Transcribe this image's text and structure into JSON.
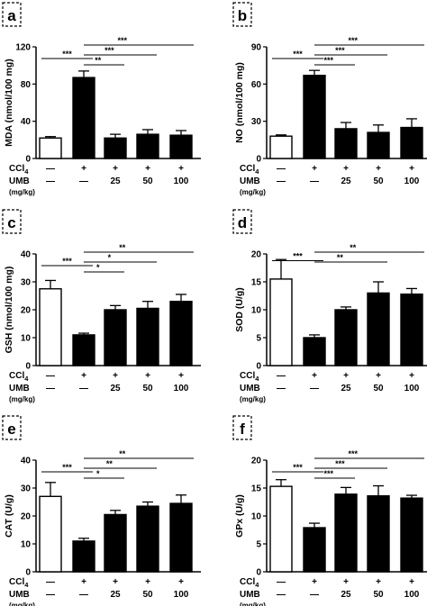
{
  "panels": [
    {
      "letter": "a",
      "chart_data": {
        "type": "bar",
        "categories": [
          "—",
          "CCl4",
          "CCl4+UMB 25",
          "CCl4+UMB 50",
          "CCl4+UMB 100"
        ],
        "values": [
          22,
          87,
          22,
          26,
          25
        ],
        "errors": [
          1.5,
          7,
          4,
          5,
          5
        ],
        "ylabel": "MDA (nmol/100 mg)",
        "ylim": [
          0,
          120
        ],
        "yticks": [
          "0",
          "40",
          "80",
          "120"
        ],
        "significance": [
          {
            "from": 0,
            "to": 1,
            "label": "***"
          },
          {
            "from": 1,
            "to": 2,
            "label": "**"
          },
          {
            "from": 1,
            "to": 3,
            "label": "***"
          },
          {
            "from": 1,
            "to": 4,
            "label": "***"
          }
        ]
      }
    },
    {
      "letter": "b",
      "chart_data": {
        "type": "bar",
        "categories": [
          "—",
          "CCl4",
          "CCl4+UMB 25",
          "CCl4+UMB 50",
          "CCl4+UMB 100"
        ],
        "values": [
          18,
          67,
          24,
          21,
          25
        ],
        "errors": [
          1,
          4,
          5,
          6,
          7
        ],
        "ylabel": "NO (nmol/100 mg)",
        "ylim": [
          0,
          90
        ],
        "yticks": [
          "0",
          "30",
          "60",
          "90"
        ],
        "significance": [
          {
            "from": 0,
            "to": 1,
            "label": "***"
          },
          {
            "from": 1,
            "to": 2,
            "label": "***"
          },
          {
            "from": 1,
            "to": 3,
            "label": "***"
          },
          {
            "from": 1,
            "to": 4,
            "label": "***"
          }
        ]
      }
    },
    {
      "letter": "c",
      "chart_data": {
        "type": "bar",
        "categories": [
          "—",
          "CCl4",
          "CCl4+UMB 25",
          "CCl4+UMB 50",
          "CCl4+UMB 100"
        ],
        "values": [
          27.5,
          11,
          20,
          20.5,
          23
        ],
        "errors": [
          3,
          0.6,
          1.5,
          2.5,
          2.5
        ],
        "ylabel": "GSH (nmol/100 mg)",
        "ylim": [
          0,
          40
        ],
        "yticks": [
          "0",
          "10",
          "20",
          "30",
          "40"
        ],
        "significance": [
          {
            "from": 0,
            "to": 1,
            "label": "***"
          },
          {
            "from": 1,
            "to": 2,
            "label": "*"
          },
          {
            "from": 1,
            "to": 3,
            "label": "*"
          },
          {
            "from": 1,
            "to": 4,
            "label": "**"
          }
        ]
      }
    },
    {
      "letter": "d",
      "chart_data": {
        "type": "bar",
        "categories": [
          "—",
          "CCl4",
          "CCl4+UMB 25",
          "CCl4+UMB 50",
          "CCl4+UMB 100"
        ],
        "values": [
          15.5,
          5,
          10,
          13,
          12.8
        ],
        "errors": [
          3.5,
          0.5,
          0.5,
          2,
          1
        ],
        "ylabel": "SOD (U/g)",
        "ylim": [
          0,
          20
        ],
        "yticks": [
          "0",
          "5",
          "10",
          "15",
          "20"
        ],
        "significance": [
          {
            "from": 0,
            "to": 1,
            "label": "***"
          },
          {
            "from": 1,
            "to": 3,
            "label": "**"
          },
          {
            "from": 1,
            "to": 4,
            "label": "**"
          }
        ]
      }
    },
    {
      "letter": "e",
      "chart_data": {
        "type": "bar",
        "categories": [
          "—",
          "CCl4",
          "CCl4+UMB 25",
          "CCl4+UMB 50",
          "CCl4+UMB 100"
        ],
        "values": [
          27,
          11,
          20.5,
          23.5,
          24.5
        ],
        "errors": [
          5,
          1,
          1.5,
          1.5,
          3
        ],
        "ylabel": "CAT (U/g)",
        "ylim": [
          0,
          40
        ],
        "yticks": [
          "0",
          "10",
          "20",
          "30",
          "40"
        ],
        "significance": [
          {
            "from": 0,
            "to": 1,
            "label": "***"
          },
          {
            "from": 1,
            "to": 2,
            "label": "*"
          },
          {
            "from": 1,
            "to": 3,
            "label": "**"
          },
          {
            "from": 1,
            "to": 4,
            "label": "**"
          }
        ]
      }
    },
    {
      "letter": "f",
      "chart_data": {
        "type": "bar",
        "categories": [
          "—",
          "CCl4",
          "CCl4+UMB 25",
          "CCl4+UMB 50",
          "CCl4+UMB 100"
        ],
        "values": [
          15.3,
          7.9,
          13.9,
          13.6,
          13.2
        ],
        "errors": [
          1.2,
          0.8,
          1.2,
          1.8,
          0.5
        ],
        "ylabel": "GPx (U/g)",
        "ylim": [
          0,
          20
        ],
        "yticks": [
          "0",
          "5",
          "10",
          "15",
          "20"
        ],
        "significance": [
          {
            "from": 0,
            "to": 1,
            "label": "***"
          },
          {
            "from": 1,
            "to": 2,
            "label": "***"
          },
          {
            "from": 1,
            "to": 3,
            "label": "***"
          },
          {
            "from": 1,
            "to": 4,
            "label": "***"
          }
        ]
      }
    }
  ],
  "treatment_table": {
    "ccl4_label": "CCl",
    "ccl4_subscript": "4",
    "umb_label": "UMB",
    "unit_label": "(mg/kg)",
    "ccl4_row": [
      "—",
      "+",
      "+",
      "+",
      "+"
    ],
    "umb_row": [
      "—",
      "—",
      "25",
      "50",
      "100"
    ]
  }
}
